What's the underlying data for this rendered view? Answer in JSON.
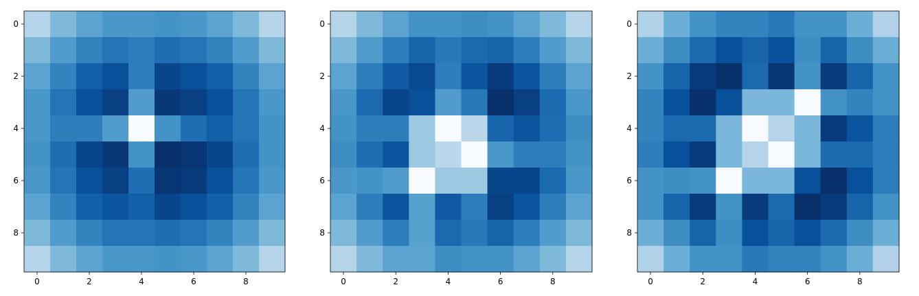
{
  "figure": {
    "colormap": "Blues",
    "colormap_stops": [
      "#f7fbff",
      "#deebf7",
      "#c6dbef",
      "#9ecae1",
      "#6baed6",
      "#4292c6",
      "#2171b5",
      "#08519c",
      "#08306b"
    ]
  },
  "chart_data": [
    {
      "type": "heatmap",
      "title": "",
      "xlabel": "",
      "ylabel": "",
      "x_ticks": [
        0,
        2,
        4,
        6,
        8
      ],
      "y_ticks": [
        0,
        2,
        4,
        6,
        8
      ],
      "xlim": [
        -0.5,
        9.5
      ],
      "ylim": [
        9.5,
        -0.5
      ],
      "grid": false,
      "values": [
        [
          0.3,
          0.45,
          0.55,
          0.6,
          0.6,
          0.62,
          0.6,
          0.55,
          0.45,
          0.3
        ],
        [
          0.45,
          0.58,
          0.68,
          0.74,
          0.7,
          0.76,
          0.74,
          0.68,
          0.58,
          0.45
        ],
        [
          0.55,
          0.68,
          0.82,
          0.88,
          0.7,
          0.92,
          0.88,
          0.82,
          0.68,
          0.55
        ],
        [
          0.6,
          0.74,
          0.88,
          0.94,
          0.58,
          0.97,
          0.94,
          0.88,
          0.74,
          0.6
        ],
        [
          0.6,
          0.7,
          0.7,
          0.58,
          0.0,
          0.62,
          0.76,
          0.82,
          0.74,
          0.62
        ],
        [
          0.62,
          0.76,
          0.92,
          0.97,
          0.62,
          1.0,
          0.98,
          0.92,
          0.76,
          0.62
        ],
        [
          0.6,
          0.74,
          0.88,
          0.94,
          0.76,
          0.98,
          0.96,
          0.88,
          0.74,
          0.6
        ],
        [
          0.55,
          0.68,
          0.82,
          0.86,
          0.82,
          0.92,
          0.88,
          0.82,
          0.68,
          0.55
        ],
        [
          0.45,
          0.58,
          0.68,
          0.74,
          0.74,
          0.76,
          0.74,
          0.68,
          0.58,
          0.45
        ],
        [
          0.3,
          0.45,
          0.55,
          0.6,
          0.6,
          0.62,
          0.6,
          0.55,
          0.45,
          0.3
        ]
      ]
    },
    {
      "type": "heatmap",
      "title": "",
      "xlabel": "",
      "ylabel": "",
      "x_ticks": [
        0,
        2,
        4,
        6,
        8
      ],
      "y_ticks": [
        0,
        2,
        4,
        6,
        8
      ],
      "xlim": [
        -0.5,
        9.5
      ],
      "ylim": [
        9.5,
        -0.5
      ],
      "grid": false,
      "values": [
        [
          0.3,
          0.45,
          0.55,
          0.62,
          0.62,
          0.64,
          0.62,
          0.55,
          0.45,
          0.3
        ],
        [
          0.45,
          0.58,
          0.7,
          0.8,
          0.72,
          0.78,
          0.8,
          0.7,
          0.58,
          0.45
        ],
        [
          0.55,
          0.7,
          0.84,
          0.9,
          0.7,
          0.86,
          0.96,
          0.86,
          0.7,
          0.55
        ],
        [
          0.6,
          0.78,
          0.92,
          0.88,
          0.58,
          0.72,
          1.0,
          0.94,
          0.78,
          0.6
        ],
        [
          0.62,
          0.7,
          0.7,
          0.38,
          0.0,
          0.28,
          0.8,
          0.86,
          0.76,
          0.64
        ],
        [
          0.64,
          0.76,
          0.86,
          0.38,
          0.28,
          0.0,
          0.6,
          0.7,
          0.7,
          0.62
        ],
        [
          0.6,
          0.62,
          0.58,
          0.0,
          0.38,
          0.38,
          0.92,
          0.92,
          0.78,
          0.6
        ],
        [
          0.55,
          0.7,
          0.86,
          0.56,
          0.84,
          0.7,
          0.94,
          0.86,
          0.7,
          0.55
        ],
        [
          0.45,
          0.58,
          0.7,
          0.56,
          0.78,
          0.72,
          0.8,
          0.7,
          0.58,
          0.45
        ],
        [
          0.3,
          0.45,
          0.55,
          0.55,
          0.64,
          0.62,
          0.62,
          0.55,
          0.45,
          0.3
        ]
      ]
    },
    {
      "type": "heatmap",
      "title": "",
      "xlabel": "",
      "ylabel": "",
      "x_ticks": [
        0,
        2,
        4,
        6,
        8
      ],
      "y_ticks": [
        0,
        2,
        4,
        6,
        8
      ],
      "xlim": [
        -0.5,
        9.5
      ],
      "ylim": [
        9.5,
        -0.5
      ],
      "grid": false,
      "values": [
        [
          0.32,
          0.5,
          0.62,
          0.68,
          0.68,
          0.72,
          0.62,
          0.62,
          0.5,
          0.32
        ],
        [
          0.5,
          0.64,
          0.78,
          0.88,
          0.8,
          0.88,
          0.64,
          0.8,
          0.64,
          0.5
        ],
        [
          0.62,
          0.8,
          0.96,
          1.0,
          0.78,
          0.98,
          0.62,
          0.96,
          0.8,
          0.62
        ],
        [
          0.68,
          0.88,
          1.0,
          0.88,
          0.46,
          0.46,
          0.0,
          0.62,
          0.68,
          0.62
        ],
        [
          0.68,
          0.78,
          0.78,
          0.46,
          0.0,
          0.3,
          0.46,
          0.96,
          0.86,
          0.7
        ],
        [
          0.7,
          0.88,
          0.96,
          0.46,
          0.3,
          0.0,
          0.46,
          0.78,
          0.78,
          0.7
        ],
        [
          0.62,
          0.64,
          0.62,
          0.0,
          0.46,
          0.46,
          0.88,
          1.0,
          0.88,
          0.7
        ],
        [
          0.62,
          0.8,
          0.96,
          0.62,
          0.96,
          0.78,
          1.0,
          0.96,
          0.8,
          0.62
        ],
        [
          0.5,
          0.64,
          0.8,
          0.64,
          0.88,
          0.8,
          0.88,
          0.78,
          0.64,
          0.5
        ],
        [
          0.32,
          0.5,
          0.62,
          0.62,
          0.72,
          0.68,
          0.68,
          0.62,
          0.5,
          0.32
        ]
      ]
    }
  ]
}
